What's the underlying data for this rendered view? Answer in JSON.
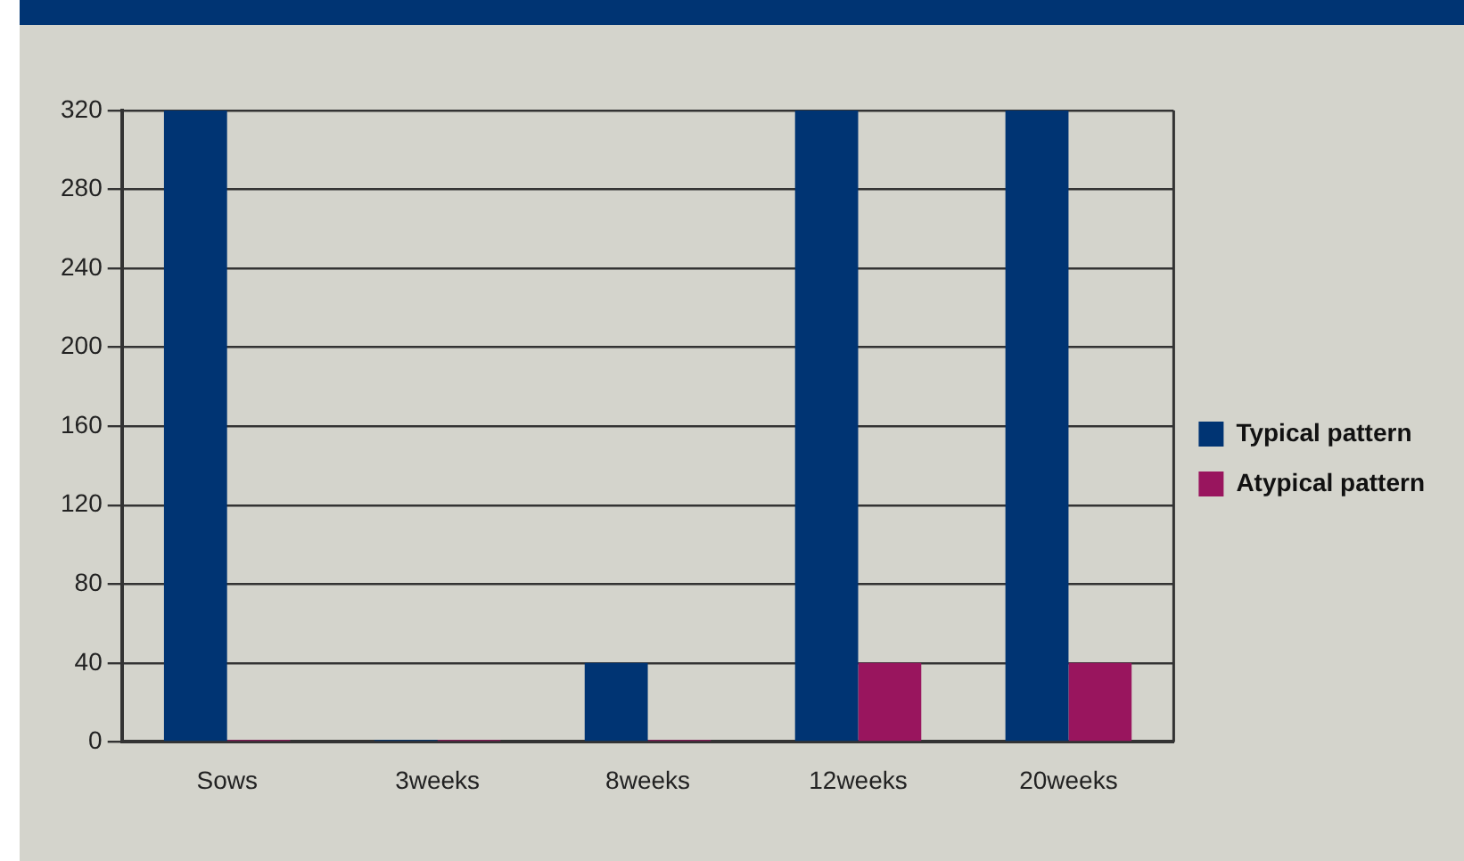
{
  "chart_data": {
    "type": "bar",
    "categories": [
      "Sows",
      "3weeks",
      "8weeks",
      "12weeks",
      "20weeks"
    ],
    "series": [
      {
        "name": "Typical pattern",
        "color": "#003473",
        "values": [
          320,
          1,
          40,
          320,
          320
        ]
      },
      {
        "name": "Atypical pattern",
        "color": "#99155e",
        "values": [
          1,
          1,
          1,
          40,
          40
        ]
      }
    ],
    "ylim": [
      0,
      320
    ],
    "yticks": [
      0,
      40,
      80,
      120,
      160,
      200,
      240,
      280,
      320
    ],
    "grid": "y",
    "legend": "right"
  }
}
